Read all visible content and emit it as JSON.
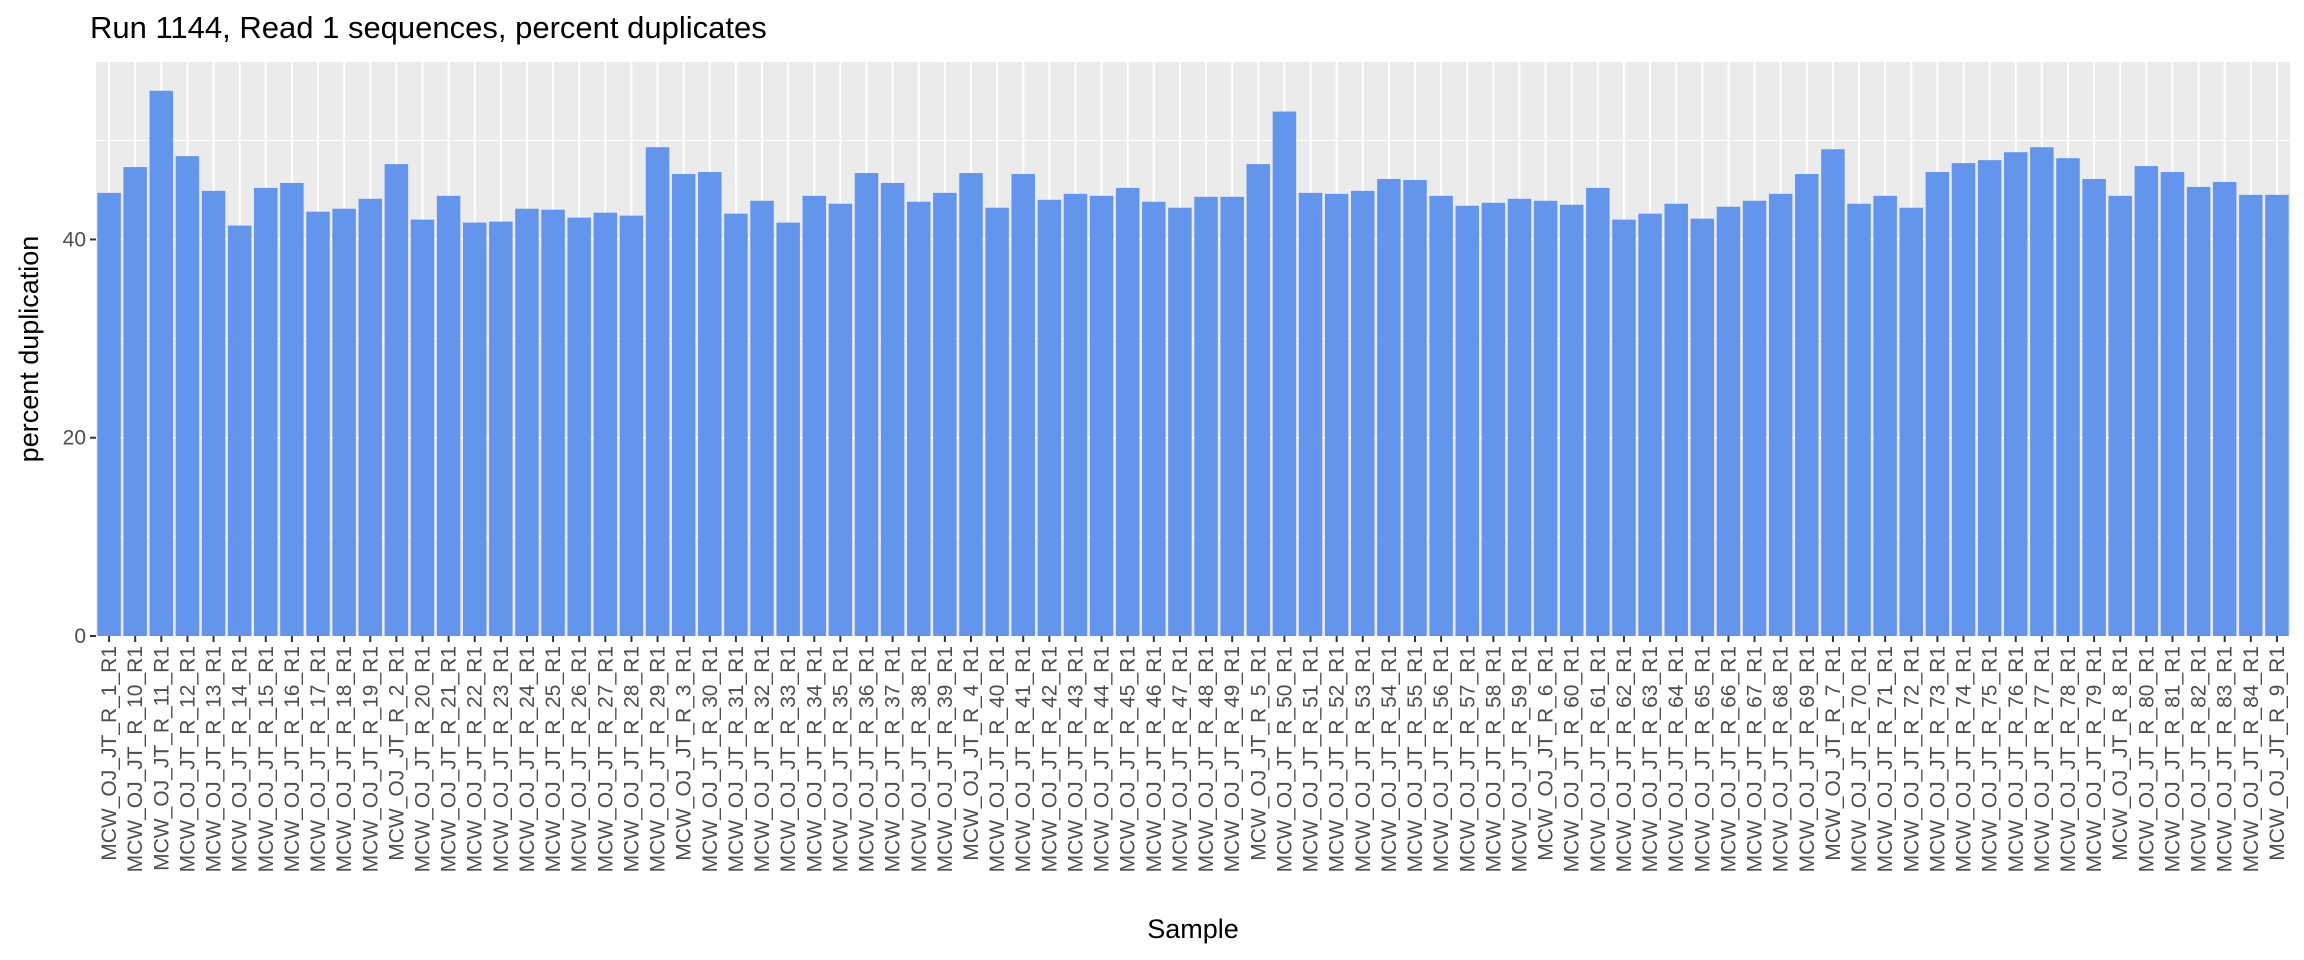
{
  "chart_data": {
    "type": "bar",
    "title": "Run 1144, Read 1 sequences, percent duplicates",
    "xlabel": "Sample",
    "ylabel": "percent duplication",
    "ylim": [
      0,
      57.9
    ],
    "yticks": [
      0,
      20,
      40
    ],
    "grid": true,
    "legend": "none",
    "bar_color": "#6495ED",
    "panel_color": "#EBEBEB",
    "grid_color": "#FFFFFF",
    "categories": [
      "MCW_OJ_JT_R_1_R1",
      "MCW_OJ_JT_R_10_R1",
      "MCW_OJ_JT_R_11_R1",
      "MCW_OJ_JT_R_12_R1",
      "MCW_OJ_JT_R_13_R1",
      "MCW_OJ_JT_R_14_R1",
      "MCW_OJ_JT_R_15_R1",
      "MCW_OJ_JT_R_16_R1",
      "MCW_OJ_JT_R_17_R1",
      "MCW_OJ_JT_R_18_R1",
      "MCW_OJ_JT_R_19_R1",
      "MCW_OJ_JT_R_2_R1",
      "MCW_OJ_JT_R_20_R1",
      "MCW_OJ_JT_R_21_R1",
      "MCW_OJ_JT_R_22_R1",
      "MCW_OJ_JT_R_23_R1",
      "MCW_OJ_JT_R_24_R1",
      "MCW_OJ_JT_R_25_R1",
      "MCW_OJ_JT_R_26_R1",
      "MCW_OJ_JT_R_27_R1",
      "MCW_OJ_JT_R_28_R1",
      "MCW_OJ_JT_R_29_R1",
      "MCW_OJ_JT_R_3_R1",
      "MCW_OJ_JT_R_30_R1",
      "MCW_OJ_JT_R_31_R1",
      "MCW_OJ_JT_R_32_R1",
      "MCW_OJ_JT_R_33_R1",
      "MCW_OJ_JT_R_34_R1",
      "MCW_OJ_JT_R_35_R1",
      "MCW_OJ_JT_R_36_R1",
      "MCW_OJ_JT_R_37_R1",
      "MCW_OJ_JT_R_38_R1",
      "MCW_OJ_JT_R_39_R1",
      "MCW_OJ_JT_R_4_R1",
      "MCW_OJ_JT_R_40_R1",
      "MCW_OJ_JT_R_41_R1",
      "MCW_OJ_JT_R_42_R1",
      "MCW_OJ_JT_R_43_R1",
      "MCW_OJ_JT_R_44_R1",
      "MCW_OJ_JT_R_45_R1",
      "MCW_OJ_JT_R_46_R1",
      "MCW_OJ_JT_R_47_R1",
      "MCW_OJ_JT_R_48_R1",
      "MCW_OJ_JT_R_49_R1",
      "MCW_OJ_JT_R_5_R1",
      "MCW_OJ_JT_R_50_R1",
      "MCW_OJ_JT_R_51_R1",
      "MCW_OJ_JT_R_52_R1",
      "MCW_OJ_JT_R_53_R1",
      "MCW_OJ_JT_R_54_R1",
      "MCW_OJ_JT_R_55_R1",
      "MCW_OJ_JT_R_56_R1",
      "MCW_OJ_JT_R_57_R1",
      "MCW_OJ_JT_R_58_R1",
      "MCW_OJ_JT_R_59_R1",
      "MCW_OJ_JT_R_6_R1",
      "MCW_OJ_JT_R_60_R1",
      "MCW_OJ_JT_R_61_R1",
      "MCW_OJ_JT_R_62_R1",
      "MCW_OJ_JT_R_63_R1",
      "MCW_OJ_JT_R_64_R1",
      "MCW_OJ_JT_R_65_R1",
      "MCW_OJ_JT_R_66_R1",
      "MCW_OJ_JT_R_67_R1",
      "MCW_OJ_JT_R_68_R1",
      "MCW_OJ_JT_R_69_R1",
      "MCW_OJ_JT_R_7_R1",
      "MCW_OJ_JT_R_70_R1",
      "MCW_OJ_JT_R_71_R1",
      "MCW_OJ_JT_R_72_R1",
      "MCW_OJ_JT_R_73_R1",
      "MCW_OJ_JT_R_74_R1",
      "MCW_OJ_JT_R_75_R1",
      "MCW_OJ_JT_R_76_R1",
      "MCW_OJ_JT_R_77_R1",
      "MCW_OJ_JT_R_78_R1",
      "MCW_OJ_JT_R_79_R1",
      "MCW_OJ_JT_R_8_R1",
      "MCW_OJ_JT_R_80_R1",
      "MCW_OJ_JT_R_81_R1",
      "MCW_OJ_JT_R_82_R1",
      "MCW_OJ_JT_R_83_R1",
      "MCW_OJ_JT_R_84_R1",
      "MCW_OJ_JT_R_9_R1"
    ],
    "values": [
      44.7,
      47.3,
      55.0,
      48.4,
      44.9,
      41.4,
      45.2,
      45.7,
      42.8,
      43.1,
      44.1,
      47.6,
      42.0,
      44.4,
      41.7,
      41.8,
      43.1,
      43.0,
      42.2,
      42.7,
      42.4,
      49.3,
      46.6,
      46.8,
      42.6,
      43.9,
      41.7,
      44.4,
      43.6,
      46.7,
      45.7,
      43.8,
      44.7,
      46.7,
      43.2,
      46.6,
      44.0,
      44.6,
      44.4,
      45.2,
      43.8,
      43.2,
      44.3,
      44.3,
      47.6,
      52.9,
      44.7,
      44.6,
      44.9,
      46.1,
      46.0,
      44.4,
      43.4,
      43.7,
      44.1,
      43.9,
      43.5,
      45.2,
      42.0,
      42.6,
      43.6,
      42.1,
      43.3,
      43.9,
      44.6,
      46.6,
      49.1,
      43.6,
      44.4,
      43.2,
      46.8,
      47.7,
      48.0,
      48.8,
      49.3,
      48.2,
      46.1,
      44.4,
      47.4,
      46.8,
      45.3,
      45.8,
      44.5,
      44.5
    ]
  }
}
